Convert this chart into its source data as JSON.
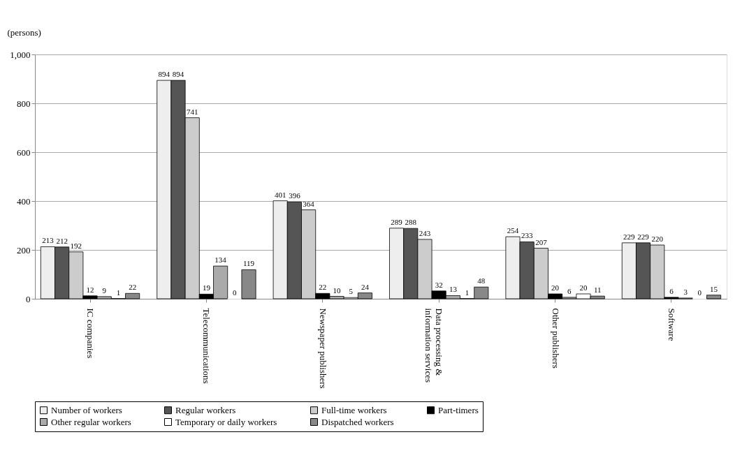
{
  "chart_data": {
    "type": "bar",
    "ylabel": "(persons)",
    "categories": [
      "IC companies",
      "Telecommunications",
      "Newspaper publishers",
      "Data processing & information services",
      "Other publishers",
      "Software"
    ],
    "series": [
      {
        "name": "Number of workers",
        "color": "#eeeeee",
        "values": [
          213,
          894,
          401,
          289,
          254,
          229
        ]
      },
      {
        "name": "Regular workers",
        "color": "#555555",
        "values": [
          212,
          894,
          396,
          288,
          233,
          229
        ]
      },
      {
        "name": "Full-time workers",
        "color": "#cccccc",
        "values": [
          192,
          741,
          364,
          243,
          207,
          220
        ]
      },
      {
        "name": "Part-timers",
        "color": "#000000",
        "values": [
          12,
          19,
          22,
          32,
          20,
          6
        ]
      },
      {
        "name": "Other regular workers",
        "color": "#aaaaaa",
        "values": [
          9,
          134,
          10,
          13,
          6,
          3
        ]
      },
      {
        "name": "Temporary or daily workers",
        "color": "#ffffff",
        "values": [
          1,
          0,
          5,
          1,
          20,
          0
        ]
      },
      {
        "name": "Dispatched workers",
        "color": "#888888",
        "values": [
          22,
          119,
          24,
          48,
          11,
          15
        ]
      }
    ],
    "ylim": [
      0,
      1000
    ],
    "yticks": [
      0,
      200,
      400,
      600,
      800,
      {
        "value": 1000,
        "label": "1,000"
      }
    ],
    "grid": "y",
    "legend": "bottom",
    "data_labels": true
  }
}
